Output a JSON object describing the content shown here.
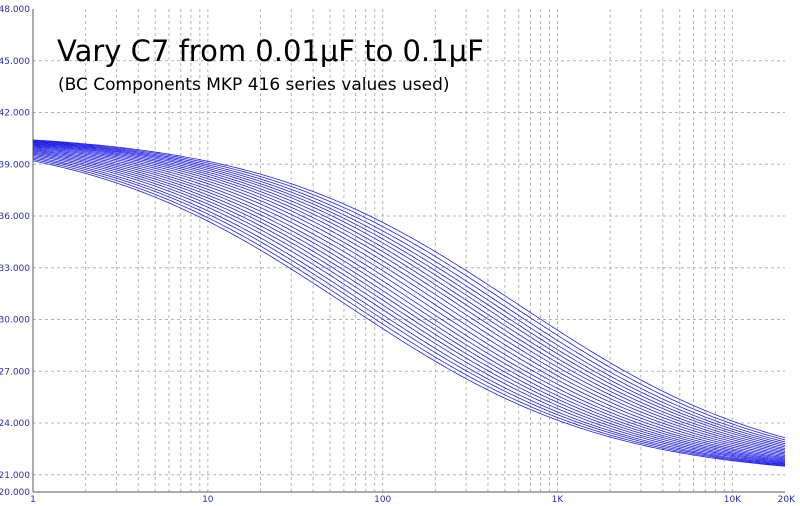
{
  "colors": {
    "background": "#ffffff",
    "grid": "#b4b4b4",
    "axis": "#5a5a5a",
    "curve": "#1f1fe6",
    "tick_text": "#2b2bbf",
    "title_text": "#000000"
  },
  "chart_data": {
    "type": "line",
    "title": "Vary C7 from 0.01μF to 0.1μF",
    "subtitle": "(BC Components MKP 416 series values used)",
    "xlabel": "",
    "ylabel": "",
    "x_scale": "log",
    "xlim": [
      1,
      20000
    ],
    "ylim": [
      20,
      48
    ],
    "grid": true,
    "legend": "none",
    "x_tick_labels": [
      {
        "value": 1,
        "label": "1"
      },
      {
        "value": 10,
        "label": "10"
      },
      {
        "value": 100,
        "label": "100"
      },
      {
        "value": 1000,
        "label": "1K"
      },
      {
        "value": 10000,
        "label": "10K"
      },
      {
        "value": 20000,
        "label": "20K"
      }
    ],
    "y_tick_labels": [
      {
        "value": 48,
        "label": "48.000"
      },
      {
        "value": 45,
        "label": "45.000"
      },
      {
        "value": 42,
        "label": "42.000"
      },
      {
        "value": 39,
        "label": "39.000"
      },
      {
        "value": 36,
        "label": "36.000"
      },
      {
        "value": 33,
        "label": "33.000"
      },
      {
        "value": 30,
        "label": "30.000"
      },
      {
        "value": 27,
        "label": "27.000"
      },
      {
        "value": 24,
        "label": "24.000"
      },
      {
        "value": 21,
        "label": "21.000"
      },
      {
        "value": 20,
        "label": "20.000"
      }
    ],
    "curve_shape": {
      "low_freq_level": 40.9,
      "high_freq_level": 20.8,
      "slope_per_decade": 2.9
    },
    "series": [
      {
        "midpoint_hz": 62
      },
      {
        "midpoint_hz": 68
      },
      {
        "midpoint_hz": 75
      },
      {
        "midpoint_hz": 82
      },
      {
        "midpoint_hz": 91
      },
      {
        "midpoint_hz": 100
      },
      {
        "midpoint_hz": 110
      },
      {
        "midpoint_hz": 121
      },
      {
        "midpoint_hz": 133
      },
      {
        "midpoint_hz": 147
      },
      {
        "midpoint_hz": 162
      },
      {
        "midpoint_hz": 180
      },
      {
        "midpoint_hz": 200
      },
      {
        "midpoint_hz": 222
      },
      {
        "midpoint_hz": 246
      },
      {
        "midpoint_hz": 272
      },
      {
        "midpoint_hz": 300
      },
      {
        "midpoint_hz": 330
      },
      {
        "midpoint_hz": 365
      },
      {
        "midpoint_hz": 400
      },
      {
        "midpoint_hz": 440
      },
      {
        "midpoint_hz": 485
      },
      {
        "midpoint_hz": 540
      },
      {
        "midpoint_hz": 600
      }
    ]
  }
}
